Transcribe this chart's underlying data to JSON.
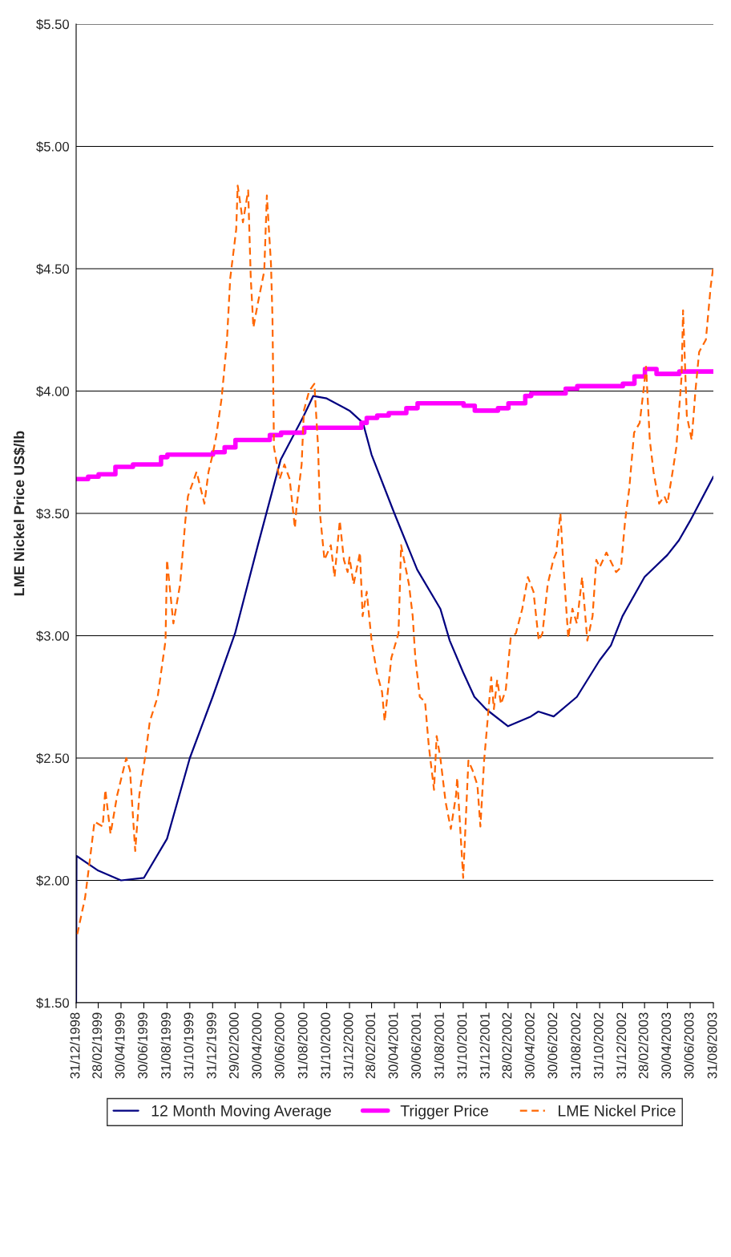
{
  "chart_data": {
    "type": "line",
    "ylabel": "LME Nickel Price US$/lb",
    "ylim": [
      1.5,
      5.5
    ],
    "yticks": [
      {
        "value": 1.5,
        "label": "$1.50"
      },
      {
        "value": 2.0,
        "label": "$2.00"
      },
      {
        "value": 2.5,
        "label": "$2.50"
      },
      {
        "value": 3.0,
        "label": "$3.00"
      },
      {
        "value": 3.5,
        "label": "$3.50"
      },
      {
        "value": 4.0,
        "label": "$4.00"
      },
      {
        "value": 4.5,
        "label": "$4.50"
      },
      {
        "value": 5.0,
        "label": "$5.00"
      },
      {
        "value": 5.5,
        "label": "$5.50"
      }
    ],
    "xlim": [
      "1998-12-31",
      "2003-08-31"
    ],
    "xticks": [
      {
        "value": "1998-12-31",
        "label": "31/12/1998"
      },
      {
        "value": "1999-02-28",
        "label": "28/02/1999"
      },
      {
        "value": "1999-04-30",
        "label": "30/04/1999"
      },
      {
        "value": "1999-06-30",
        "label": "30/06/1999"
      },
      {
        "value": "1999-08-31",
        "label": "31/08/1999"
      },
      {
        "value": "1999-10-31",
        "label": "31/10/1999"
      },
      {
        "value": "1999-12-31",
        "label": "31/12/1999"
      },
      {
        "value": "2000-02-29",
        "label": "29/02/2000"
      },
      {
        "value": "2000-04-30",
        "label": "30/04/2000"
      },
      {
        "value": "2000-06-30",
        "label": "30/06/2000"
      },
      {
        "value": "2000-08-31",
        "label": "31/08/2000"
      },
      {
        "value": "2000-10-31",
        "label": "31/10/2000"
      },
      {
        "value": "2000-12-31",
        "label": "31/12/2000"
      },
      {
        "value": "2001-02-28",
        "label": "28/02/2001"
      },
      {
        "value": "2001-04-30",
        "label": "30/04/2001"
      },
      {
        "value": "2001-06-30",
        "label": "30/06/2001"
      },
      {
        "value": "2001-08-31",
        "label": "31/08/2001"
      },
      {
        "value": "2001-10-31",
        "label": "31/10/2001"
      },
      {
        "value": "2001-12-31",
        "label": "31/12/2001"
      },
      {
        "value": "2002-02-28",
        "label": "28/02/2002"
      },
      {
        "value": "2002-04-30",
        "label": "30/04/2002"
      },
      {
        "value": "2002-06-30",
        "label": "30/06/2002"
      },
      {
        "value": "2002-08-31",
        "label": "31/08/2002"
      },
      {
        "value": "2002-10-31",
        "label": "31/10/2002"
      },
      {
        "value": "2002-12-31",
        "label": "31/12/2002"
      },
      {
        "value": "2003-02-28",
        "label": "28/02/2003"
      },
      {
        "value": "2003-04-30",
        "label": "30/04/2003"
      },
      {
        "value": "2003-06-30",
        "label": "30/06/2003"
      },
      {
        "value": "2003-08-31",
        "label": "31/08/2003"
      }
    ],
    "grid": "y",
    "legend": "bottom",
    "series": [
      {
        "name": "12 Month Moving Average",
        "color": "#000080",
        "line_style": "solid",
        "x": [
          "1998-12-31",
          "1999-01-01",
          "1999-02-28",
          "1999-04-30",
          "1999-06-30",
          "1999-08-31",
          "1999-10-31",
          "1999-12-31",
          "2000-02-29",
          "2000-04-30",
          "2000-06-30",
          "2000-08-31",
          "2000-09-25",
          "2000-10-31",
          "2000-12-31",
          "2001-02-05",
          "2001-02-28",
          "2001-04-30",
          "2001-06-30",
          "2001-08-31",
          "2001-09-25",
          "2001-10-31",
          "2001-11-30",
          "2001-12-31",
          "2002-02-28",
          "2002-04-30",
          "2002-05-20",
          "2002-06-30",
          "2002-08-31",
          "2002-10-31",
          "2002-11-30",
          "2002-12-31",
          "2003-02-28",
          "2003-04-30",
          "2003-05-31",
          "2003-06-30",
          "2003-08-31"
        ],
        "values": [
          1.5,
          2.1,
          2.04,
          2.0,
          2.01,
          2.17,
          2.5,
          2.75,
          3.01,
          3.37,
          3.72,
          3.9,
          3.98,
          3.97,
          3.92,
          3.87,
          3.74,
          3.5,
          3.27,
          3.11,
          2.98,
          2.85,
          2.75,
          2.7,
          2.63,
          2.67,
          2.69,
          2.67,
          2.75,
          2.9,
          2.96,
          3.08,
          3.24,
          3.33,
          3.39,
          3.47,
          3.65
        ]
      },
      {
        "name": "Trigger Price",
        "type": "step",
        "color": "#ff00ff",
        "line_style": "solid",
        "x": [
          "1998-12-31",
          "1999-02-01",
          "1999-03-01",
          "1999-04-15",
          "1999-06-01",
          "1999-08-15",
          "1999-09-01",
          "2000-01-01",
          "2000-02-01",
          "2000-03-01",
          "2000-06-01",
          "2000-07-01",
          "2000-09-01",
          "2001-02-01",
          "2001-02-15",
          "2001-03-15",
          "2001-04-15",
          "2001-06-01",
          "2001-07-01",
          "2001-11-01",
          "2001-12-01",
          "2002-02-01",
          "2002-03-01",
          "2002-04-15",
          "2002-05-01",
          "2002-08-01",
          "2002-09-01",
          "2003-01-01",
          "2003-02-01",
          "2003-03-01",
          "2003-04-01",
          "2003-06-01",
          "2003-08-31"
        ],
        "values": [
          3.64,
          3.65,
          3.66,
          3.69,
          3.7,
          3.73,
          3.74,
          3.75,
          3.77,
          3.8,
          3.82,
          3.83,
          3.85,
          3.87,
          3.89,
          3.9,
          3.91,
          3.93,
          3.95,
          3.94,
          3.92,
          3.93,
          3.95,
          3.98,
          3.99,
          4.01,
          4.02,
          4.03,
          4.06,
          4.09,
          4.07,
          4.08,
          4.08
        ]
      },
      {
        "name": "LME Nickel Price",
        "color": "#ff6600",
        "line_style": "dashed",
        "x": [
          "1999-01-03",
          "1999-01-24",
          "1999-02-07",
          "1999-02-18",
          "1999-03-12",
          "1999-03-19",
          "1999-04-02",
          "1999-04-20",
          "1999-05-14",
          "1999-05-24",
          "1999-06-07",
          "1999-06-18",
          "1999-07-05",
          "1999-07-16",
          "1999-08-06",
          "1999-08-27",
          "1999-08-31",
          "1999-09-17",
          "1999-10-05",
          "1999-10-19",
          "1999-10-26",
          "1999-11-18",
          "1999-12-09",
          "1999-12-20",
          "1999-12-31",
          "2000-01-10",
          "2000-01-24",
          "2000-02-07",
          "2000-02-16",
          "2000-03-03",
          "2000-03-07",
          "2000-03-21",
          "2000-04-04",
          "2000-04-11",
          "2000-04-18",
          "2000-04-30",
          "2000-05-17",
          "2000-05-24",
          "2000-06-04",
          "2000-06-08",
          "2000-06-12",
          "2000-06-27",
          "2000-07-10",
          "2000-07-24",
          "2000-08-07",
          "2000-08-11",
          "2000-08-25",
          "2000-08-31",
          "2000-09-14",
          "2000-09-28",
          "2000-10-08",
          "2000-10-13",
          "2000-10-25",
          "2000-11-11",
          "2000-11-21",
          "2000-12-05",
          "2000-12-16",
          "2000-12-26",
          "2000-12-31",
          "2001-01-11",
          "2001-01-28",
          "2001-02-04",
          "2001-02-15",
          "2001-02-28",
          "2001-03-14",
          "2001-03-28",
          "2001-04-04",
          "2001-04-22",
          "2001-05-11",
          "2001-05-18",
          "2001-06-08",
          "2001-06-18",
          "2001-06-25",
          "2001-07-07",
          "2001-07-21",
          "2001-07-31",
          "2001-08-14",
          "2001-08-21",
          "2001-08-31",
          "2001-09-14",
          "2001-09-28",
          "2001-10-12",
          "2001-10-15",
          "2001-10-31",
          "2001-11-14",
          "2001-11-25",
          "2001-12-08",
          "2001-12-16",
          "2001-12-26",
          "2002-01-04",
          "2002-01-14",
          "2002-01-21",
          "2002-01-30",
          "2002-02-09",
          "2002-02-22",
          "2002-03-07",
          "2002-03-21",
          "2002-04-07",
          "2002-04-22",
          "2002-05-07",
          "2002-05-21",
          "2002-05-31",
          "2002-06-14",
          "2002-06-29",
          "2002-07-07",
          "2002-07-18",
          "2002-07-25",
          "2002-08-08",
          "2002-08-19",
          "2002-08-31",
          "2002-09-14",
          "2002-09-28",
          "2002-10-12",
          "2002-10-22",
          "2002-10-31",
          "2002-11-18",
          "2002-12-14",
          "2002-12-27",
          "2003-01-07",
          "2003-01-18",
          "2003-01-31",
          "2003-02-15",
          "2003-02-25",
          "2003-03-04",
          "2003-03-14",
          "2003-03-24",
          "2003-04-08",
          "2003-04-22",
          "2003-04-30",
          "2003-05-14",
          "2003-05-24",
          "2003-06-07",
          "2003-06-11",
          "2003-06-21",
          "2003-07-04",
          "2003-07-14",
          "2003-07-24",
          "2003-08-11",
          "2003-08-24",
          "2003-08-31"
        ],
        "values": [
          1.78,
          1.93,
          2.1,
          2.24,
          2.22,
          2.37,
          2.19,
          2.35,
          2.5,
          2.45,
          2.12,
          2.35,
          2.52,
          2.65,
          2.75,
          2.98,
          3.31,
          3.05,
          3.21,
          3.47,
          3.57,
          3.67,
          3.54,
          3.67,
          3.74,
          3.82,
          3.97,
          4.2,
          4.46,
          4.66,
          4.84,
          4.69,
          4.82,
          4.46,
          4.26,
          4.36,
          4.49,
          4.8,
          4.52,
          4.3,
          3.77,
          3.64,
          3.7,
          3.64,
          3.44,
          3.52,
          3.7,
          3.92,
          4.0,
          4.03,
          3.77,
          3.5,
          3.31,
          3.37,
          3.24,
          3.47,
          3.31,
          3.26,
          3.32,
          3.21,
          3.34,
          3.08,
          3.18,
          2.98,
          2.85,
          2.77,
          2.65,
          2.91,
          3.01,
          3.37,
          3.21,
          3.08,
          2.91,
          2.75,
          2.73,
          2.55,
          2.37,
          2.59,
          2.5,
          2.32,
          2.21,
          2.35,
          2.42,
          2.01,
          2.49,
          2.45,
          2.39,
          2.22,
          2.49,
          2.65,
          2.83,
          2.7,
          2.82,
          2.72,
          2.78,
          2.99,
          3.01,
          3.11,
          3.24,
          3.18,
          2.98,
          3.01,
          3.21,
          3.31,
          3.34,
          3.5,
          3.31,
          2.99,
          3.11,
          3.05,
          3.24,
          2.98,
          3.08,
          3.31,
          3.28,
          3.34,
          3.26,
          3.28,
          3.47,
          3.6,
          3.83,
          3.87,
          4.0,
          4.1,
          3.8,
          3.67,
          3.54,
          3.57,
          3.54,
          3.67,
          3.77,
          4.06,
          4.33,
          3.9,
          3.8,
          4.0,
          4.16,
          4.21,
          4.43,
          4.51
        ]
      }
    ]
  }
}
